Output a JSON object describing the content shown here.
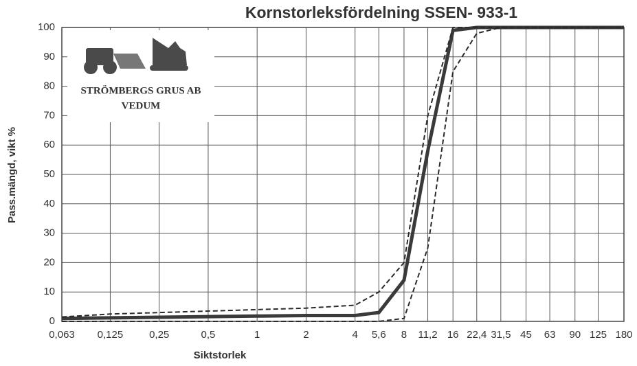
{
  "chart_data": {
    "type": "line",
    "title": "Kornstorleksfördelning SSEN- 933-1",
    "xlabel": "Siktstorlek",
    "ylabel": "Pass.mängd, vikt %",
    "annotations": [
      "STRÖMBERGS GRUS AB",
      "VEDUM"
    ],
    "xscale": "log",
    "grid": true,
    "x": [
      0.063,
      0.125,
      0.25,
      0.5,
      1,
      2,
      4,
      5.6,
      8,
      11.2,
      16,
      22.4,
      31.5,
      45,
      63,
      90,
      125,
      180
    ],
    "series": [
      {
        "color": "#3a3a3a",
        "dash": false,
        "values": [
          1,
          1.2,
          1.4,
          1.6,
          1.8,
          2,
          2,
          3,
          14,
          58,
          99,
          100,
          100,
          100,
          100,
          100,
          100,
          100
        ]
      },
      {
        "color": "#2a2a2a",
        "dash": true,
        "values": [
          1.5,
          2.5,
          3,
          3.5,
          4,
          4.5,
          5.5,
          10,
          20,
          70,
          100,
          100,
          100,
          100,
          100,
          100,
          100,
          100
        ]
      },
      {
        "color": "#2a2a2a",
        "dash": true,
        "values": [
          0,
          0,
          0,
          0,
          0,
          0,
          0,
          0,
          1,
          25,
          85,
          98,
          100,
          100,
          100,
          100,
          100,
          100
        ]
      }
    ],
    "xlim": [
      0.063,
      180
    ],
    "xticks": [
      {
        "value": 0.063,
        "label": "0,063"
      },
      {
        "value": 0.125,
        "label": "0,125"
      },
      {
        "value": 0.25,
        "label": "0,25"
      },
      {
        "value": 0.5,
        "label": "0,5"
      },
      1,
      2,
      4,
      {
        "value": 5.6,
        "label": "5,6"
      },
      8,
      {
        "value": 11.2,
        "label": "11,2"
      },
      16,
      {
        "value": 22.4,
        "label": "22,4"
      },
      {
        "value": 31.5,
        "label": "31,5"
      },
      45,
      63,
      90,
      125,
      180
    ],
    "ylim": [
      0,
      100
    ],
    "yticks": [
      0,
      10,
      20,
      30,
      40,
      50,
      60,
      70,
      80,
      90,
      100
    ]
  }
}
